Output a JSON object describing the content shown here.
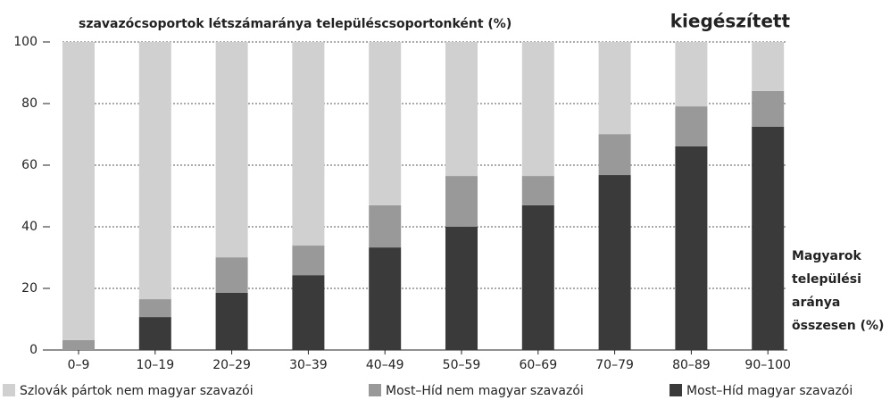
{
  "chart_data": {
    "type": "stacked_bar",
    "title": "szavazócsoportok létszámaránya településcsoportonként (%)",
    "subtitle": "kiegészített",
    "x_label": [
      "Magyarok",
      "települési",
      "aránya",
      "összesen (%)"
    ],
    "categories": [
      "0–9",
      "10–19",
      "20–29",
      "30–39",
      "40–49",
      "50–59",
      "60–69",
      "70–79",
      "80–89",
      "90–100"
    ],
    "series": [
      {
        "name": "Szlovák pártok nem magyar szavazói",
        "color": "#d0d0d0",
        "values": [
          96.8,
          83.5,
          69.9,
          66.1,
          53.0,
          43.5,
          43.5,
          29.9,
          20.9,
          15.9
        ]
      },
      {
        "name": "Most–Híd nem magyar szavazói",
        "color": "#999999",
        "values": [
          3.2,
          5.8,
          11.5,
          9.6,
          13.7,
          16.5,
          9.5,
          13.3,
          13.0,
          11.6
        ]
      },
      {
        "name": "Most–Híd magyar szavazói",
        "color": "#3a3a3a",
        "values": [
          0,
          10.7,
          18.6,
          24.3,
          33.3,
          40.0,
          47.0,
          56.8,
          66.1,
          72.5
        ]
      }
    ],
    "ylim": [
      0,
      100
    ],
    "yticks": [
      0,
      20,
      40,
      60,
      80,
      100
    ],
    "grid": true
  }
}
